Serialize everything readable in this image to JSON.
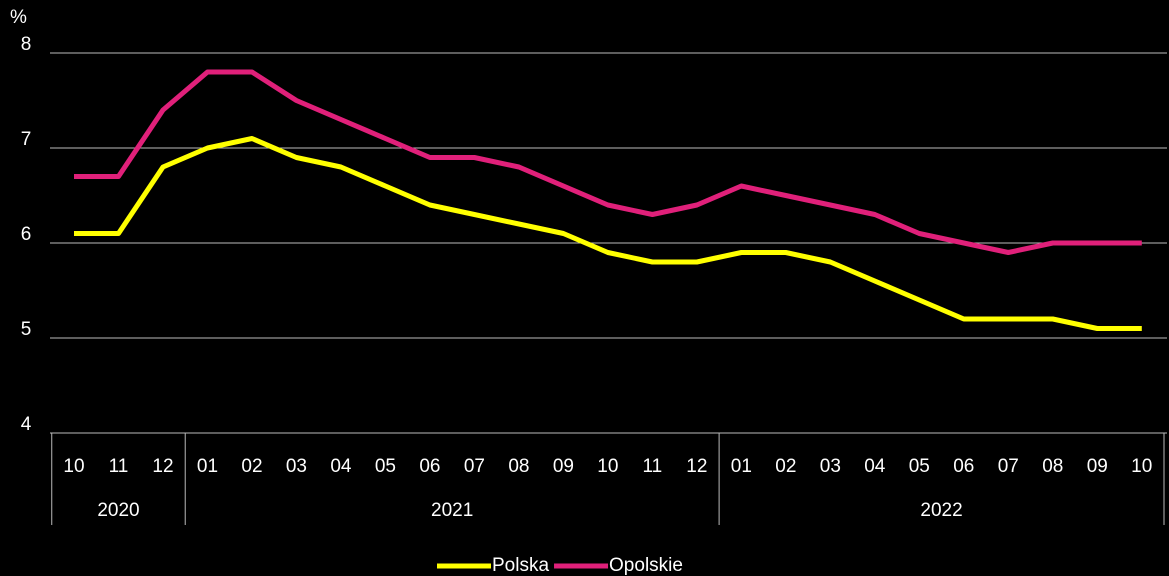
{
  "chart_data": {
    "type": "line",
    "y_unit": "%",
    "groups": [
      {
        "label": "2020",
        "categories": [
          "10",
          "11",
          "12"
        ]
      },
      {
        "label": "2021",
        "categories": [
          "01",
          "02",
          "03",
          "04",
          "05",
          "06",
          "07",
          "08",
          "09",
          "10",
          "11",
          "12"
        ]
      },
      {
        "label": "2022",
        "categories": [
          "01",
          "02",
          "03",
          "04",
          "05",
          "06",
          "07",
          "08",
          "09",
          "10"
        ]
      }
    ],
    "series": [
      {
        "name": "Polska",
        "color": "#ffff00",
        "values": [
          6.1,
          6.1,
          6.8,
          7.0,
          7.1,
          6.9,
          6.8,
          6.6,
          6.4,
          6.3,
          6.2,
          6.1,
          5.9,
          5.8,
          5.8,
          5.9,
          5.9,
          5.8,
          5.6,
          5.4,
          5.2,
          5.2,
          5.2,
          5.1,
          5.1
        ]
      },
      {
        "name": "Opolskie",
        "color": "#e0207a",
        "values": [
          6.7,
          6.7,
          7.4,
          7.8,
          7.8,
          7.5,
          7.3,
          7.1,
          6.9,
          6.9,
          6.8,
          6.6,
          6.4,
          6.3,
          6.4,
          6.6,
          6.5,
          6.4,
          6.3,
          6.1,
          6.0,
          5.9,
          6.0,
          6.0,
          6.0
        ]
      }
    ],
    "ylim": [
      4,
      8
    ],
    "yticks": [
      4,
      5,
      6,
      7,
      8
    ],
    "grid": true,
    "legend": "bottom"
  }
}
